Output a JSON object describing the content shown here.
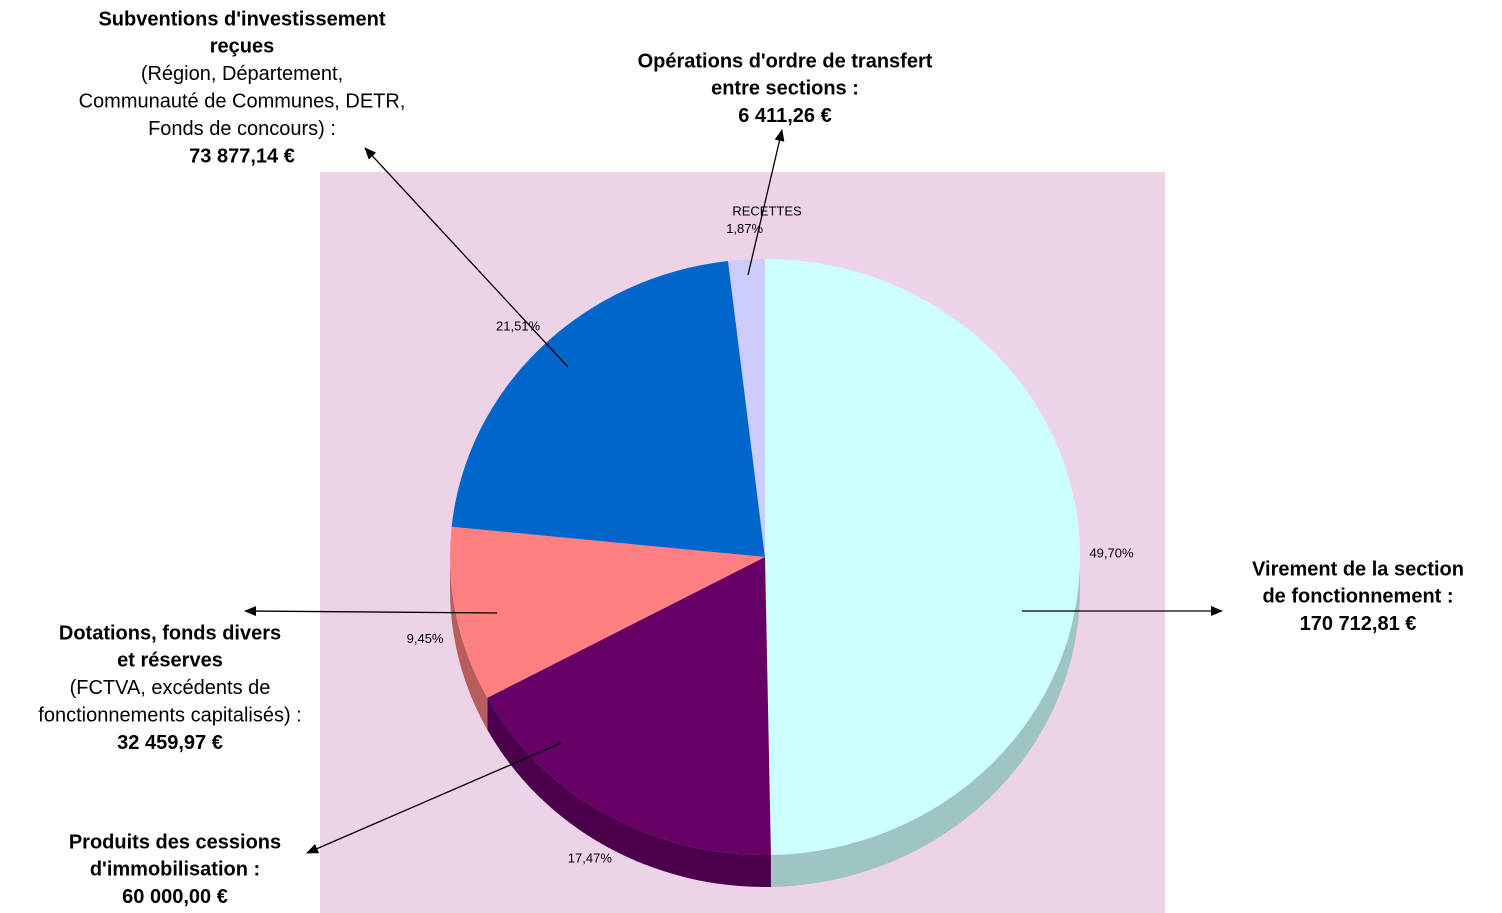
{
  "chart_data": {
    "type": "pie",
    "title": "RECETTES",
    "values": [
      49.7,
      17.47,
      9.45,
      21.51,
      1.87
    ],
    "value_labels": [
      "49,70%",
      "17,47%",
      "9,45%",
      "21,51%",
      "1,87%"
    ],
    "colors": [
      "#ccffff",
      "#660066",
      "#ff8080",
      "#0066cc",
      "#ccccff"
    ],
    "side_colors": [
      "#9fc4c4",
      "#4a004a",
      "#b85c5c",
      "#004c99",
      "#9999c0"
    ],
    "background": "#ecd3e8",
    "callouts": [
      {
        "heading": [
          "Virement de la section",
          "de fonctionnement :"
        ],
        "detail": [],
        "amount": "170 712,81 €"
      },
      {
        "heading": [
          "Produits des cessions",
          "d'immobilisation :"
        ],
        "detail": [],
        "amount": "60 000,00 €"
      },
      {
        "heading": [
          "Dotations, fonds divers",
          "et réserves"
        ],
        "detail": [
          "(FCTVA, excédents de",
          "fonctionnements capitalisés) :"
        ],
        "amount": "32 459,97 €"
      },
      {
        "heading": [
          "Subventions d'investissement",
          "reçues"
        ],
        "detail": [
          "(Région, Département,",
          "Communauté de Communes, DETR,",
          "Fonds de concours) :"
        ],
        "amount": "73 877,14 €"
      },
      {
        "heading": [
          "Opérations d'ordre de transfert",
          "entre sections :"
        ],
        "detail": [],
        "amount": "6 411,26 €"
      }
    ]
  }
}
